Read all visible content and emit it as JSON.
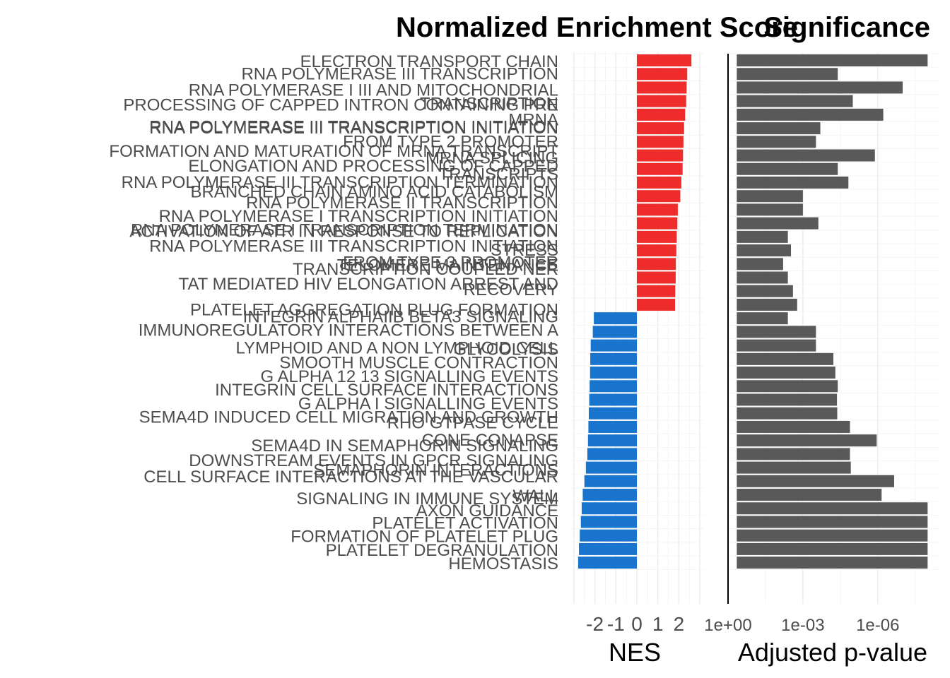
{
  "chart_data": [
    {
      "type": "bar",
      "orientation": "horizontal",
      "title": "Normalized Enrichment Score",
      "xlabel": "NES",
      "xlim": [
        -3.2,
        3.2
      ],
      "x_ticks": [
        -2,
        -1,
        0,
        1,
        2
      ],
      "x_tick_labels": [
        "-2",
        "-1",
        "0",
        "1",
        "2"
      ],
      "grid": true,
      "colors": {
        "positive": "#ee2c2c",
        "negative": "#1874cd"
      },
      "categories": [
        "ELECTRON TRANSPORT CHAIN",
        "RNA POLYMERASE III TRANSCRIPTION",
        "RNA POLYMERASE I III AND MITOCHONDRIAL",
        "PROCESSING OF CAPPED INTRON CONTAINING PRE",
        "TRANSCRIPTION",
        "RNA POLYMERASE III TRANSCRIPTION INITIATION",
        "MRNA",
        "RNA POLYMERASE III TRANSCRIPTION INITIATION",
        "FROM TYPE 2 PROMOTER",
        "FORMATION AND MATURATION OF MRNA TRANSCRIPT",
        "MRNA SPLICING",
        "ELONGATION AND PROCESSING OF CAPPED",
        "TRANSCRIPTS",
        "RNA POLYMERASE III TRANSCRIPTION TERMINATION",
        "BRANCHED CHAIN AMINO ACID CATABOLISM",
        "RNA POLYMERASE II TRANSCRIPTION",
        "RNA POLYMERASE I TRANSCRIPTION INITIATION",
        "RNA POLYMERASE I TRANSCRIPTION TERMINATION",
        "ACTIVATION OF ATR IN RESPONSE TO REPLICATION",
        "RNA POLYMERASE III TRANSCRIPTION INITIATION",
        "STRESS",
        "FROM TYPE 3 PROMOTER",
        "TELOMERE MAINTENANCE",
        "TRANSCRIPTION COUPLED NER",
        "TAT MEDIATED HIV ELONGATION ARREST AND",
        "RECOVERY",
        "PLATELET AGGREGATION PLUG FORMATION",
        "INTEGRIN ALPHAIIB BETA3 SIGNALING",
        "IMMUNOREGULATORY INTERACTIONS BETWEEN A",
        "LYMPHOID AND A NON LYMPHOID CELL",
        "GLYCOLYSIS",
        "SMOOTH MUSCLE CONTRACTION",
        "G ALPHA 12 13 SIGNALLING EVENTS",
        "INTEGRIN CELL SURFACE INTERACTIONS",
        "G ALPHA I SIGNALLING EVENTS",
        "SEMA4D INDUCED CELL MIGRATION AND GROWTH",
        "RHO GTPASE CYCLE",
        "CONE CONAPSE",
        "SEMA4D IN SEMAPHORIN SIGNALING",
        "DOWNSTREAM EVENTS IN GPCR SIGNALING",
        "SEMAPHORIN INTERACTIONS",
        "CELL SURFACE INTERACTIONS AT THE VASCULAR",
        "WALL",
        "SIGNALING IN IMMUNE SYSTEM",
        "AXON GUIDANCE",
        "PLATELET ACTIVATION",
        "FORMATION OF PLATELET PLUG",
        "PLATELET DEGRANULATION",
        "HEMOSTASIS"
      ],
      "bars": [
        {
          "y": 1,
          "value": 2.6
        },
        {
          "y": 2,
          "value": 2.4
        },
        {
          "y": 3,
          "value": 2.37
        },
        {
          "y": 4,
          "value": 2.35
        },
        {
          "y": 5,
          "value": 2.3
        },
        {
          "y": 6,
          "value": 2.25
        },
        {
          "y": 7,
          "value": 2.22
        },
        {
          "y": 8,
          "value": 2.2
        },
        {
          "y": 9,
          "value": 2.18
        },
        {
          "y": 10,
          "value": 2.12
        },
        {
          "y": 11,
          "value": 2.07
        },
        {
          "y": 12,
          "value": 1.95
        },
        {
          "y": 13,
          "value": 1.93
        },
        {
          "y": 14,
          "value": 1.9
        },
        {
          "y": 15,
          "value": 1.88
        },
        {
          "y": 16,
          "value": 1.86
        },
        {
          "y": 17,
          "value": 1.85
        },
        {
          "y": 18,
          "value": 1.83
        },
        {
          "y": 19,
          "value": 1.82
        },
        {
          "y": 20,
          "value": -2.05
        },
        {
          "y": 21,
          "value": -2.1
        },
        {
          "y": 22,
          "value": -2.2
        },
        {
          "y": 23,
          "value": -2.22
        },
        {
          "y": 24,
          "value": -2.23
        },
        {
          "y": 25,
          "value": -2.25
        },
        {
          "y": 26,
          "value": -2.27
        },
        {
          "y": 27,
          "value": -2.29
        },
        {
          "y": 28,
          "value": -2.31
        },
        {
          "y": 29,
          "value": -2.33
        },
        {
          "y": 30,
          "value": -2.36
        },
        {
          "y": 31,
          "value": -2.43
        },
        {
          "y": 32,
          "value": -2.5
        },
        {
          "y": 33,
          "value": -2.58
        },
        {
          "y": 34,
          "value": -2.63
        },
        {
          "y": 35,
          "value": -2.67
        },
        {
          "y": 36,
          "value": -2.72
        },
        {
          "y": 37,
          "value": -2.76
        },
        {
          "y": 38,
          "value": -2.8
        }
      ],
      "label_positions": [
        1,
        1.9,
        3.1,
        4.2,
        4.1,
        5.8,
        5.3,
        5.9,
        6.9,
        7.6,
        8.1,
        8.7,
        9.3,
        9.9,
        10.6,
        11.4,
        12.4,
        13.4,
        13.5,
        14.6,
        14.9,
        15.8,
        16.0,
        16.3,
        17.4,
        17.8,
        19.3,
        19.8,
        20.8,
        22.1,
        22.2,
        23.2,
        24.2,
        25.2,
        26.2,
        27.2,
        27.6,
        28.9,
        29.3,
        30.4,
        31.1,
        31.6,
        33.0,
        33.2,
        34.1,
        35.0,
        36.0,
        37.0,
        38.0
      ]
    },
    {
      "type": "bar",
      "orientation": "horizontal",
      "title": "Significance",
      "xlabel": "Adjusted p-value",
      "scale": "-log10",
      "xlim_neglog10": [
        0,
        8.5
      ],
      "x_ticks": [
        "1e+00",
        "1e-03",
        "1e-06"
      ],
      "x_tick_positions_neglog10": [
        0,
        3,
        6
      ],
      "grid": true,
      "colors": {
        "bar": "#595959"
      },
      "p_values": [
        1e-08,
        4e-05,
        1e-07,
        1e-05,
        6e-07,
        0.0002,
        0.0003,
        1.3e-06,
        4e-05,
        1.5e-05,
        0.001,
        0.001,
        0.00024,
        0.004,
        0.003,
        0.0062,
        0.004,
        0.0025,
        0.0017,
        0.004,
        0.0003,
        0.0003,
        6e-05,
        5e-05,
        4e-05,
        4.3e-05,
        4.2e-05,
        1.3e-05,
        1.1e-06,
        1.3e-05,
        1.2e-05,
        2.2e-07,
        7e-07,
        1e-08,
        1e-08,
        1e-08,
        1e-08,
        1e-08
      ]
    }
  ]
}
